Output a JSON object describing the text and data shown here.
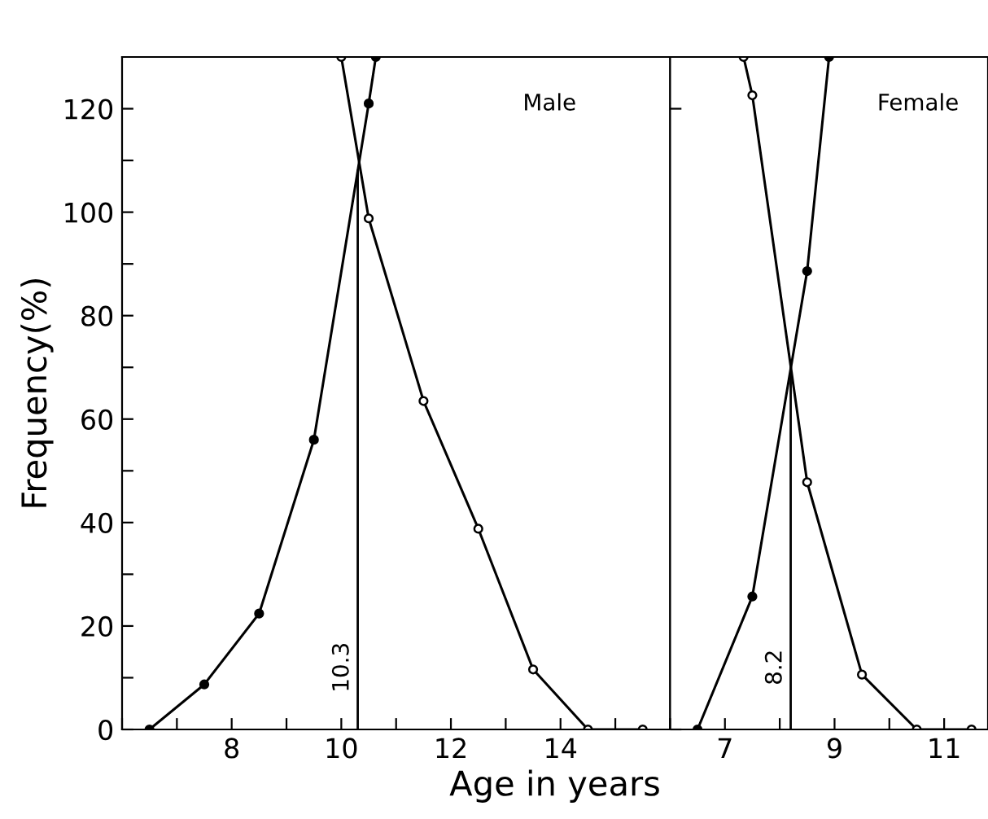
{
  "chart_data": [
    {
      "type": "line",
      "xlabel": "Age in years",
      "ylabel": "Frequency(%)",
      "annotations": [
        "Male"
      ],
      "xlim": [
        6,
        16
      ],
      "ylim": [
        0,
        130
      ],
      "xticks": [
        {
          "value": 6,
          "label": null
        },
        {
          "value": 7,
          "label": null
        },
        8,
        {
          "value": 9,
          "label": null
        },
        10,
        {
          "value": 11,
          "label": null
        },
        12,
        {
          "value": 13,
          "label": null
        },
        14,
        {
          "value": 15,
          "label": null
        },
        {
          "value": 16,
          "label": null
        }
      ],
      "yticks": [
        0,
        {
          "value": 10,
          "label": null
        },
        20,
        {
          "value": 30,
          "label": null
        },
        40,
        {
          "value": 50,
          "label": null
        },
        60,
        {
          "value": 70,
          "label": null
        },
        80,
        {
          "value": 90,
          "label": null
        },
        100,
        {
          "value": 110,
          "label": null
        },
        120
      ],
      "series": [
        {
          "color": "#000000",
          "marker": "circle",
          "x": [
            6.5,
            7.5,
            8.5,
            9.5,
            10.5,
            10.63
          ],
          "values": [
            0,
            8.7,
            22.4,
            56,
            121,
            130
          ]
        },
        {
          "color": "#000000",
          "marker": "circle",
          "x": [
            10.0,
            10.5,
            11.5,
            12.5,
            13.5,
            14.5,
            15.5
          ],
          "values": [
            130,
            98.8,
            63.5,
            38.8,
            11.6,
            0,
            0
          ]
        }
      ],
      "ref_lines": [
        {
          "axis": "x",
          "value": 10.3,
          "label": "10.3"
        }
      ],
      "grid": false,
      "legend": false
    },
    {
      "type": "line",
      "annotations": [
        "Female"
      ],
      "xlim": [
        6,
        11.8
      ],
      "ylim": [
        0,
        130
      ],
      "tick_labels": "x",
      "xticks": [
        {
          "value": 6,
          "label": null
        },
        7,
        {
          "value": 8,
          "label": null
        },
        9,
        {
          "value": 10,
          "label": null
        },
        11
      ],
      "yticks": [
        {
          "value": 0,
          "label": null
        },
        {
          "value": 120,
          "label": null
        }
      ],
      "series": [
        {
          "color": "#000000",
          "marker": "circle",
          "x": [
            6.5,
            7.5,
            8.5,
            8.9
          ],
          "values": [
            0,
            25.7,
            88.6,
            130
          ]
        },
        {
          "color": "#000000",
          "marker": "circle",
          "x": [
            7.34,
            7.5,
            8.5,
            9.5,
            10.5,
            11.5
          ],
          "values": [
            130,
            122.6,
            47.8,
            10.6,
            0,
            0
          ]
        }
      ],
      "ref_lines": [
        {
          "axis": "x",
          "value": 8.2,
          "label": "8.2"
        }
      ],
      "grid": false,
      "legend": false
    }
  ]
}
